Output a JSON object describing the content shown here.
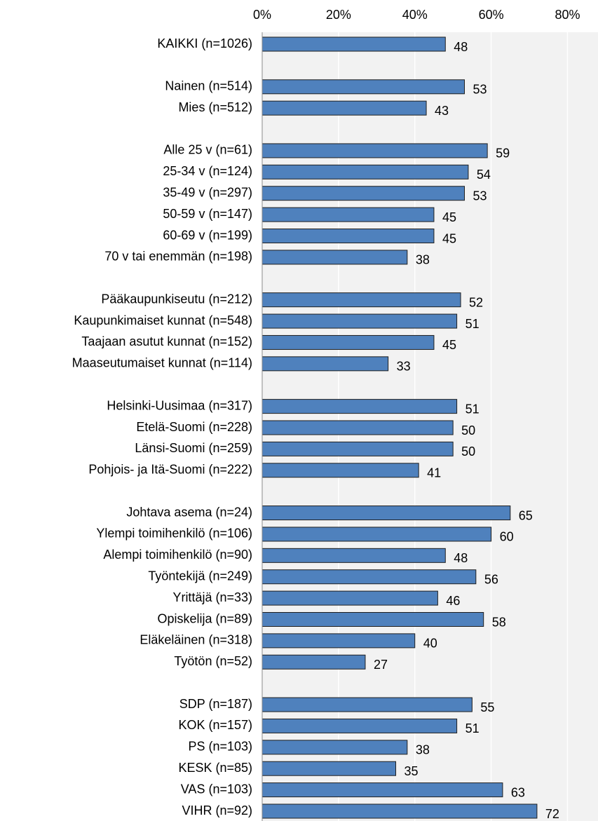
{
  "chart_data": {
    "type": "hbar",
    "categories": [
      "KAIKKI (n=1026)",
      null,
      "Nainen (n=514)",
      "Mies (n=512)",
      null,
      "Alle 25 v (n=61)",
      "25-34 v (n=124)",
      "35-49 v (n=297)",
      "50-59 v (n=147)",
      "60-69 v (n=199)",
      "70 v tai enemmän (n=198)",
      null,
      "Pääkaupunkiseutu (n=212)",
      "Kaupunkimaiset kunnat (n=548)",
      "Taajaan asutut kunnat (n=152)",
      "Maaseutumaiset kunnat (n=114)",
      null,
      "Helsinki-Uusimaa (n=317)",
      "Etelä-Suomi (n=228)",
      "Länsi-Suomi (n=259)",
      "Pohjois- ja Itä-Suomi (n=222)",
      null,
      "Johtava asema (n=24)",
      "Ylempi toimihenkilö (n=106)",
      "Alempi toimihenkilö (n=90)",
      "Työntekijä (n=249)",
      "Yrittäjä (n=33)",
      "Opiskelija (n=89)",
      "Eläkeläinen (n=318)",
      "Työtön (n=52)",
      null,
      "SDP (n=187)",
      "KOK (n=157)",
      "PS (n=103)",
      "KESK (n=85)",
      "VAS (n=103)",
      "VIHR (n=92)"
    ],
    "values": [
      48,
      null,
      53,
      43,
      null,
      59,
      54,
      53,
      45,
      45,
      38,
      null,
      52,
      51,
      45,
      33,
      null,
      51,
      50,
      50,
      41,
      null,
      65,
      60,
      48,
      56,
      46,
      58,
      40,
      27,
      null,
      55,
      51,
      38,
      35,
      63,
      72
    ],
    "color": "#4f81bd",
    "xlim": [
      0,
      88
    ],
    "xticks": [
      {
        "value": 0,
        "label": "0%"
      },
      {
        "value": 20,
        "label": "20%"
      },
      {
        "value": 40,
        "label": "40%"
      },
      {
        "value": 60,
        "label": "60%"
      },
      {
        "value": 80,
        "label": "80%"
      }
    ],
    "grid": true
  }
}
